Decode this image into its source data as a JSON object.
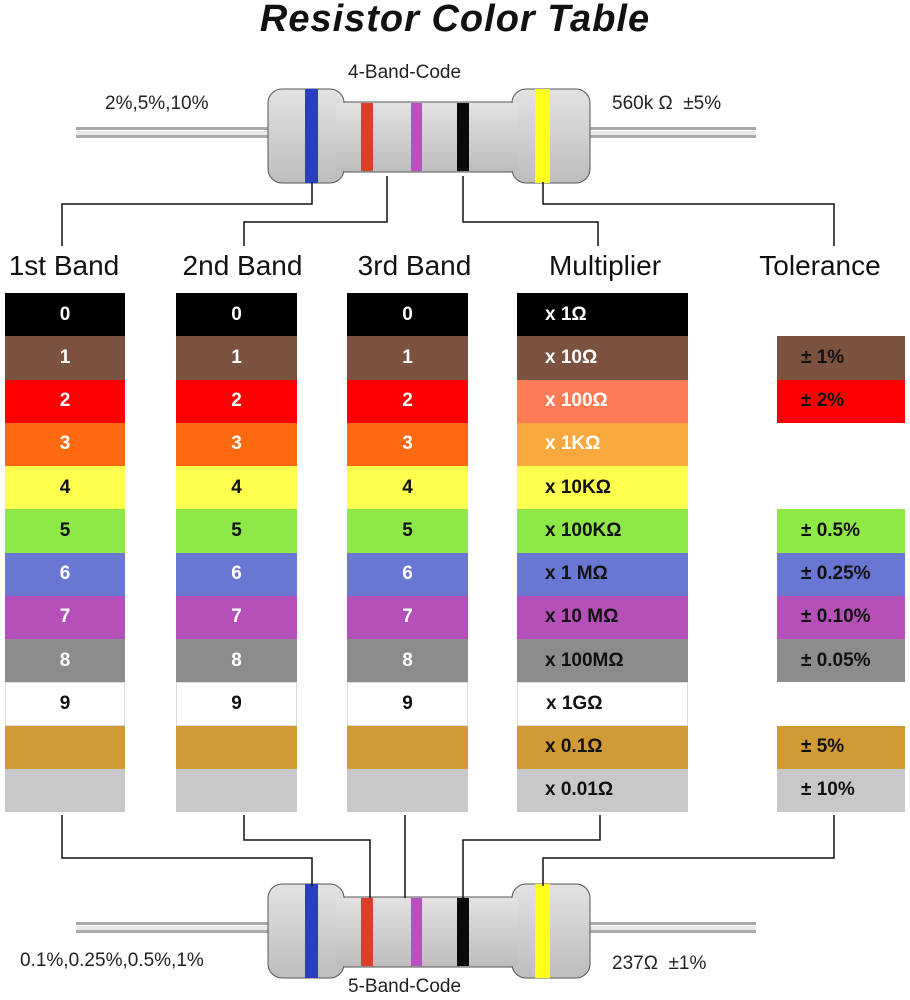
{
  "title": "Resistor Color Table",
  "four_band": {
    "label": "4-Band-Code",
    "tolerance_note": "2%,5%,10%",
    "example": "560k Ω  ±5%"
  },
  "five_band": {
    "label": "5-Band-Code",
    "tolerance_note": "0.1%,0.25%,0.5%,1%",
    "example": "237Ω  ±1%"
  },
  "headers": [
    "1st Band",
    "2nd Band",
    "3rd Band",
    "Multiplier",
    "Tolerance"
  ],
  "rows": [
    {
      "color": "#000000",
      "text": "#ffffff",
      "mtext": "#ffffff",
      "digit": "0",
      "multiplier": "x 1Ω",
      "tolerance": ""
    },
    {
      "color": "#7b5140",
      "text": "#ffffff",
      "mtext": "#ffffff",
      "digit": "1",
      "multiplier": "x 10Ω",
      "tolerance": "± 1%"
    },
    {
      "color": "#ff0000",
      "mcolor": "#ff7b55",
      "text": "#ffffff",
      "mtext": "#ffffff",
      "digit": "2",
      "multiplier": "x 100Ω",
      "tolerance": "± 2%"
    },
    {
      "color": "#ff6a10",
      "mcolor": "#f9a83d",
      "text": "#ffffff",
      "mtext": "#ffffff",
      "digit": "3",
      "multiplier": "x 1KΩ",
      "tolerance": ""
    },
    {
      "color": "#ffff4d",
      "text": "#111111",
      "mtext": "#111111",
      "digit": "4",
      "multiplier": "x 10KΩ",
      "tolerance": ""
    },
    {
      "color": "#8de848",
      "text": "#111111",
      "mtext": "#111111",
      "digit": "5",
      "multiplier": "x 100KΩ",
      "tolerance": "± 0.5%"
    },
    {
      "color": "#6a77d2",
      "text": "#ffffff",
      "mtext": "#111111",
      "digit": "6",
      "multiplier": "x 1 MΩ",
      "tolerance": "± 0.25%"
    },
    {
      "color": "#b550b9",
      "text": "#ffffff",
      "mtext": "#111111",
      "digit": "7",
      "multiplier": "x 10 MΩ",
      "tolerance": "± 0.10%"
    },
    {
      "color": "#8c8c8c",
      "text": "#ffffff",
      "mtext": "#111111",
      "digit": "8",
      "multiplier": "x 100MΩ",
      "tolerance": "± 0.05%"
    },
    {
      "color": "#ffffff",
      "text": "#111111",
      "mtext": "#111111",
      "digit": "9",
      "multiplier": "x 1GΩ",
      "tolerance": ""
    },
    {
      "color": "#d09a34",
      "text": "#111111",
      "mtext": "#111111",
      "digit": "",
      "multiplier": "x 0.1Ω",
      "tolerance": "± 5%"
    },
    {
      "color": "#c8c8c8",
      "text": "#111111",
      "mtext": "#111111",
      "digit": "",
      "multiplier": "x 0.01Ω",
      "tolerance": "± 10%"
    }
  ],
  "band_colors": {
    "blue": "#2a3fc0",
    "red": "#d8402a",
    "purple": "#bb4fbf",
    "black": "#0a0a0a",
    "yellow": "#ffff1a"
  }
}
